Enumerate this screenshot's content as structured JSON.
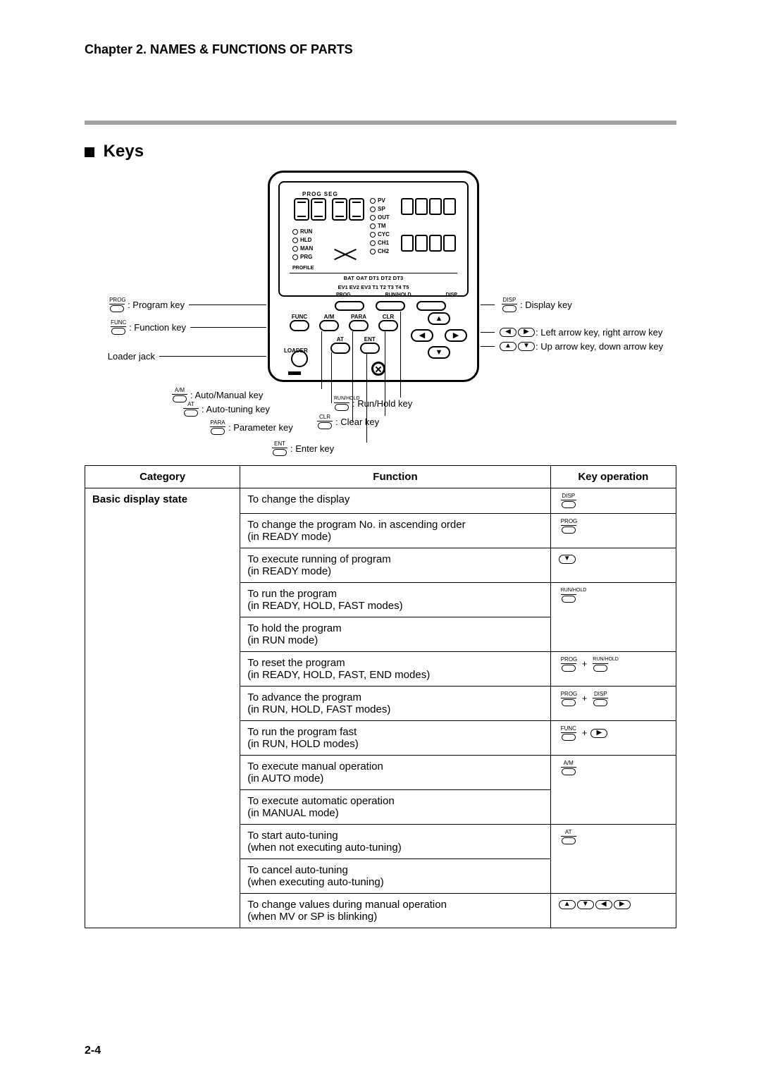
{
  "chapter_head": "Chapter 2. NAMES & FUNCTIONS OF PARTS",
  "section_title": "Keys",
  "page_number": "2-4",
  "diagram": {
    "top_labels": "PROG        SEG",
    "ind_left": [
      "RUN",
      "HLD",
      "MAN",
      "PRG"
    ],
    "ind_mid": [
      "PV",
      "SP",
      "OUT",
      "TM",
      "CYC",
      "CH1",
      "CH2"
    ],
    "profile_label": "PROFILE",
    "bot_row1": "BAT  OAT    DT1  DT2  DT3",
    "bot_row2": "EV1 EV2 EV3  T1   T2   T3   T4   T5",
    "legend1": "PROG",
    "legend2": "RUN/HOLD",
    "legend3": "DISP",
    "key_labels_row1": [
      "FUNC",
      "A/M",
      "PARA",
      "CLR"
    ],
    "key_labels_row2": [
      "LOADER",
      "AT",
      "ENT"
    ],
    "callouts_left": [
      {
        "icon": "PROG",
        "text": ": Program key"
      },
      {
        "icon": "FUNC",
        "text": ": Function key"
      },
      {
        "text": "Loader jack"
      }
    ],
    "callouts_right": [
      {
        "icon": "DISP",
        "text": ": Display key"
      },
      {
        "ovals": [
          "◀",
          "▶"
        ],
        "text": ": Left arrow key, right arrow key"
      },
      {
        "ovals": [
          "▲",
          "▼"
        ],
        "text": ": Up arrow key, down arrow key"
      }
    ],
    "callouts_bottom": [
      {
        "icon": "A/M",
        "text": ": Auto/Manual key"
      },
      {
        "icon": "AT",
        "text": ": Auto-tuning key"
      },
      {
        "icon": "PARA",
        "text": ": Parameter key"
      },
      {
        "icon": "ENT",
        "text": ": Enter key"
      },
      {
        "icon": "RUN/HOLD",
        "text": ": Run/Hold key",
        "wide": true
      },
      {
        "icon": "CLR",
        "text": ": Clear key"
      }
    ]
  },
  "table": {
    "headers": [
      "Category",
      "Function",
      "Key operation"
    ],
    "category": "Basic display state",
    "rows": [
      {
        "fn": "To change the display",
        "op": [
          {
            "key": "DISP"
          }
        ]
      },
      {
        "fn": "To change the program No. in ascending order\n(in READY mode)",
        "op": [
          {
            "key": "PROG"
          }
        ]
      },
      {
        "fn": "To execute running of program\n(in READY mode)",
        "op": [
          {
            "oval": "▼"
          }
        ]
      },
      {
        "fn": "To run the program\n(in READY, HOLD, FAST modes)",
        "op": [
          {
            "key": "RUN/HOLD",
            "wide": true
          }
        ],
        "rowspan_op": 2
      },
      {
        "fn": "To hold the program\n(in RUN mode)"
      },
      {
        "fn": "To reset the program\n(in READY, HOLD, FAST, END modes)",
        "op": [
          {
            "key": "PROG"
          },
          {
            "plus": true
          },
          {
            "key": "RUN/HOLD",
            "wide": true
          }
        ]
      },
      {
        "fn": "To advance the program\n(in RUN, HOLD, FAST modes)",
        "op": [
          {
            "key": "PROG"
          },
          {
            "plus": true
          },
          {
            "key": "DISP"
          }
        ]
      },
      {
        "fn": "To run the program fast\n(in RUN, HOLD modes)",
        "op": [
          {
            "key": "FUNC"
          },
          {
            "plus": true
          },
          {
            "oval": "▶"
          }
        ]
      },
      {
        "fn": "To execute manual operation\n(in AUTO mode)",
        "op": [
          {
            "key": "A/M"
          }
        ],
        "rowspan_op": 2
      },
      {
        "fn": "To execute automatic operation\n(in MANUAL mode)"
      },
      {
        "fn": "To start auto-tuning\n(when not executing auto-tuning)",
        "op": [
          {
            "key": "AT"
          }
        ],
        "rowspan_op": 2
      },
      {
        "fn": "To cancel auto-tuning\n(when executing auto-tuning)"
      },
      {
        "fn": "To change values during manual operation\n(when MV or SP is blinking)",
        "op": [
          {
            "oval": "▲"
          },
          {
            "oval": "▼"
          },
          {
            "oval": "◀"
          },
          {
            "oval": "▶"
          }
        ]
      }
    ]
  }
}
